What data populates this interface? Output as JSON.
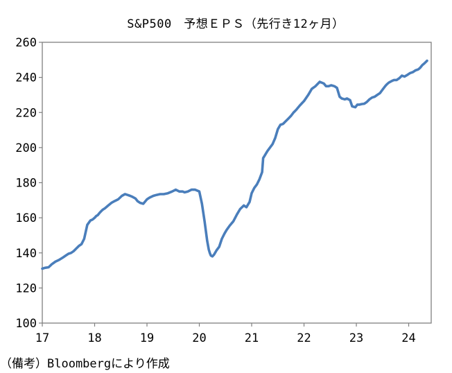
{
  "chart_data": {
    "type": "line",
    "title": "S&P500　予想ＥＰＳ（先行き12ヶ月）",
    "xlabel": "",
    "ylabel": "",
    "x_tick_labels": [
      "17",
      "18",
      "19",
      "20",
      "21",
      "22",
      "23",
      "24"
    ],
    "xlim": [
      17,
      24.43
    ],
    "ylim": [
      100,
      260
    ],
    "y_ticks": [
      100,
      120,
      140,
      160,
      180,
      200,
      220,
      240,
      260
    ],
    "grid": false,
    "legend": "none",
    "line_color": "#4a7ebb",
    "series": [
      {
        "x": [
          17.0,
          17.05,
          17.12,
          17.18,
          17.25,
          17.32,
          17.4,
          17.45,
          17.5,
          17.55,
          17.6,
          17.65,
          17.7,
          17.75,
          17.8,
          17.86,
          17.92,
          17.96,
          18.0,
          18.03,
          18.06,
          18.1,
          18.15,
          18.2,
          18.26,
          18.32,
          18.38,
          18.45,
          18.52,
          18.58,
          18.63,
          18.68,
          18.72,
          18.78,
          18.82,
          18.87,
          18.93,
          19.0,
          19.05,
          19.12,
          19.18,
          19.25,
          19.32,
          19.4,
          19.48,
          19.55,
          19.62,
          19.68,
          19.72,
          19.78,
          19.85,
          19.92,
          20.0,
          20.05,
          20.1,
          20.15,
          20.18,
          20.2,
          20.22,
          20.25,
          20.28,
          20.33,
          20.38,
          20.43,
          20.48,
          20.52,
          20.58,
          20.65,
          20.72,
          20.78,
          20.85,
          20.9,
          20.93,
          20.96,
          21.0,
          21.05,
          21.1,
          21.15,
          21.2,
          21.22,
          21.25,
          21.3,
          21.35,
          21.4,
          21.45,
          21.5,
          21.55,
          21.6,
          21.65,
          21.7,
          21.75,
          21.8,
          21.85,
          21.92,
          22.0,
          22.08,
          22.15,
          22.22,
          22.3,
          22.38,
          22.42,
          22.47,
          22.52,
          22.58,
          22.63,
          22.68,
          22.72,
          22.78,
          22.82,
          22.88,
          22.92,
          22.98,
          23.02,
          23.06,
          23.1,
          23.15,
          23.2,
          23.25,
          23.3,
          23.35,
          23.4,
          23.45,
          23.5,
          23.55,
          23.58,
          23.62,
          23.68,
          23.72,
          23.77,
          23.82,
          23.87,
          23.92,
          23.98,
          24.03,
          24.08,
          24.13,
          24.18,
          24.22,
          24.26,
          24.3,
          24.35
        ],
        "y": [
          131,
          131.5,
          131.8,
          133.5,
          135,
          136,
          137.5,
          138.5,
          139.5,
          140,
          141,
          142.5,
          144,
          145,
          148,
          156,
          158.5,
          159,
          160,
          161,
          161.5,
          163,
          164.5,
          165.5,
          167,
          168.5,
          169.5,
          170.5,
          172.5,
          173.5,
          173,
          172.5,
          172,
          171,
          169.5,
          168.5,
          168,
          170.5,
          171.5,
          172.5,
          173,
          173.5,
          173.5,
          174,
          175,
          176,
          175,
          175,
          174.5,
          175,
          176,
          176,
          175,
          168,
          158,
          147,
          142,
          140,
          138.5,
          138,
          139,
          141.5,
          143.5,
          148,
          151,
          153,
          155.5,
          158,
          162,
          165,
          167,
          166,
          167.5,
          169,
          174,
          177,
          179,
          182,
          186,
          194,
          195.5,
          198,
          200,
          202,
          205.5,
          210.5,
          213,
          213.5,
          215,
          216.5,
          218,
          220,
          221.5,
          224,
          226.5,
          230,
          233.5,
          235,
          237.5,
          236.5,
          235,
          235,
          235.5,
          235,
          234,
          229,
          228,
          227.5,
          228,
          227,
          223.5,
          223,
          224.5,
          224.5,
          224.8,
          225,
          226,
          227.5,
          228.5,
          229,
          230,
          231,
          233,
          235,
          236,
          237,
          238,
          238.5,
          238.5,
          239.5,
          241,
          240.5,
          241.5,
          242.5,
          243,
          244,
          244.5,
          245.5,
          247,
          248,
          249.5
        ]
      }
    ]
  },
  "source_note": "（備考）Bloombergにより作成"
}
